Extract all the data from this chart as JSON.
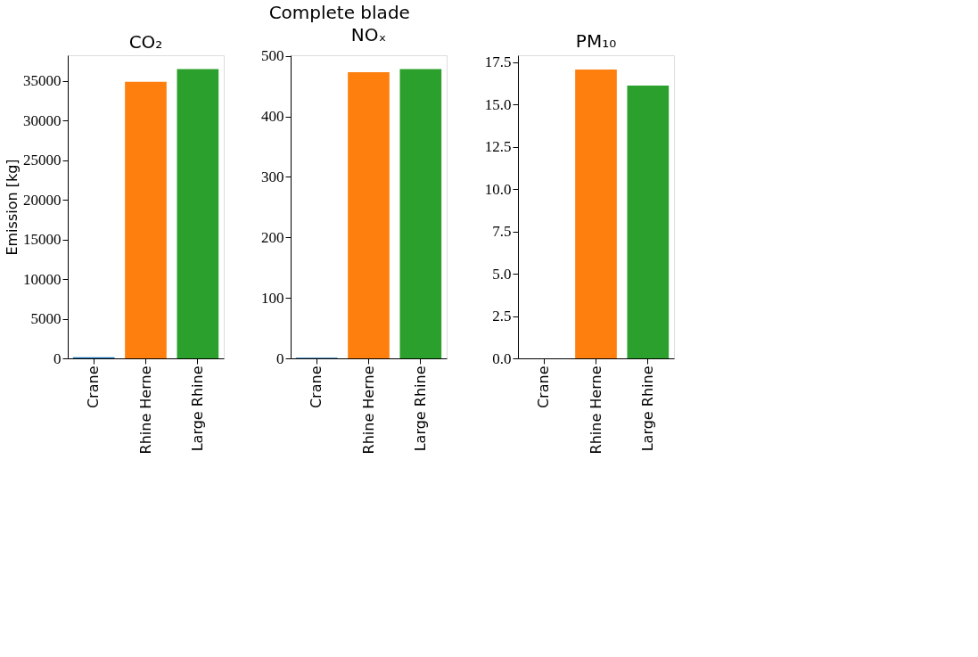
{
  "chart_data": [
    {
      "type": "bar",
      "annotations": [
        "Complete blade"
      ],
      "title": "CO₂",
      "ylabel": "Emission [kg]",
      "categories": [
        "Crane",
        "Rhine Herne",
        "Large Rhine"
      ],
      "values": [
        150,
        34900,
        36500
      ],
      "colors": [
        "#1f77b4",
        "#ff7f0e",
        "#2ca02c"
      ],
      "ylim": [
        0,
        38250
      ],
      "yticks": [
        0,
        5000,
        10000,
        15000,
        20000,
        25000,
        30000,
        35000
      ],
      "grid": false
    },
    {
      "type": "bar",
      "title": "NOₓ",
      "categories": [
        "Crane",
        "Rhine Herne",
        "Large Rhine"
      ],
      "values": [
        1,
        473,
        478
      ],
      "colors": [
        "#1f77b4",
        "#ff7f0e",
        "#2ca02c"
      ],
      "ylim": [
        0,
        501
      ],
      "yticks": [
        0,
        100,
        200,
        300,
        400,
        500
      ],
      "grid": false
    },
    {
      "type": "bar",
      "title": "PM₁₀",
      "categories": [
        "Crane",
        "Rhine Herne",
        "Large Rhine"
      ],
      "values": [
        0,
        17.08,
        16.13
      ],
      "colors": [
        "#1f77b4",
        "#ff7f0e",
        "#2ca02c"
      ],
      "ylim": [
        0,
        17.92
      ],
      "yticks": [
        {
          "value": 0,
          "label": "0.0"
        },
        2.5,
        {
          "value": 5,
          "label": "5.0"
        },
        7.5,
        {
          "value": 10,
          "label": "10.0"
        },
        12.5,
        {
          "value": 15,
          "label": "15.0"
        },
        17.5
      ],
      "grid": false
    }
  ]
}
